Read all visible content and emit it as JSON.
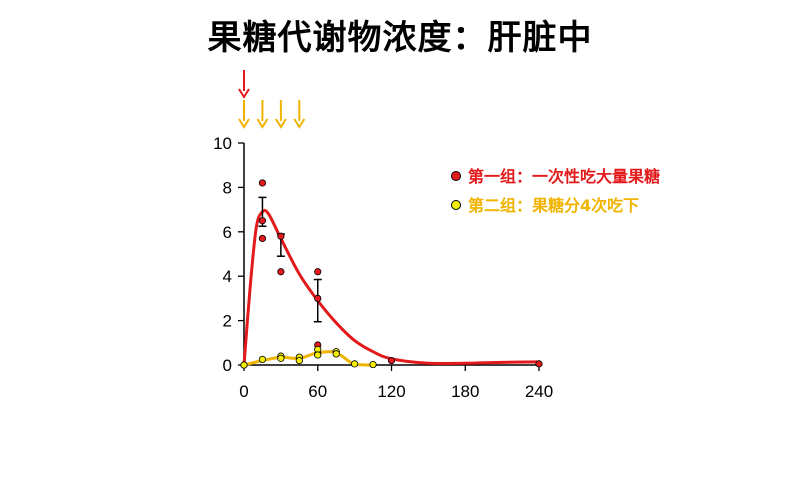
{
  "page_title": "果糖代谢物浓度：肝脏中",
  "colors": {
    "group1": "#e31a1c",
    "group2": "#f0b400",
    "group2_marker": "#f4f000",
    "axis": "#000000"
  },
  "chart_data": {
    "type": "line",
    "title": "果糖代谢物浓度：肝脏中",
    "xlabel": "",
    "ylabel": "",
    "xlim": [
      0,
      240
    ],
    "ylim": [
      0,
      10
    ],
    "x_ticks": [
      0,
      60,
      120,
      180,
      240
    ],
    "y_ticks": [
      0,
      2,
      4,
      6,
      8,
      10
    ],
    "legend_position": "top-right",
    "dose_arrows": {
      "group1": [
        0
      ],
      "group2": [
        0,
        15,
        30,
        45
      ]
    },
    "series": [
      {
        "name": "第一组：一次性吃大量果糖",
        "color": "#e31a1c",
        "curve": [
          [
            0,
            0
          ],
          [
            5,
            3.5
          ],
          [
            10,
            6.2
          ],
          [
            15,
            6.9
          ],
          [
            20,
            6.8
          ],
          [
            30,
            5.7
          ],
          [
            45,
            4.1
          ],
          [
            60,
            2.9
          ],
          [
            75,
            1.9
          ],
          [
            90,
            1.1
          ],
          [
            105,
            0.6
          ],
          [
            120,
            0.28
          ],
          [
            150,
            0.08
          ],
          [
            180,
            0.08
          ],
          [
            210,
            0.12
          ],
          [
            240,
            0.14
          ]
        ],
        "means": [
          [
            15,
            6.9
          ],
          [
            30,
            5.4
          ],
          [
            60,
            2.9
          ]
        ],
        "errors": [
          0.65,
          0.5,
          0.95
        ],
        "points": [
          [
            0,
            0
          ],
          [
            15,
            8.2
          ],
          [
            15,
            5.7
          ],
          [
            15,
            6.5
          ],
          [
            30,
            5.8
          ],
          [
            30,
            4.2
          ],
          [
            60,
            4.2
          ],
          [
            60,
            3.0
          ],
          [
            60,
            0.9
          ],
          [
            60,
            0.5
          ],
          [
            120,
            0.2
          ],
          [
            240,
            0.05
          ]
        ]
      },
      {
        "name": "第二组：果糖分4次吃下",
        "color": "#f0b400",
        "curve": [
          [
            0,
            0
          ],
          [
            15,
            0.2
          ],
          [
            30,
            0.35
          ],
          [
            45,
            0.3
          ],
          [
            60,
            0.55
          ],
          [
            75,
            0.55
          ],
          [
            90,
            0.02
          ],
          [
            105,
            0
          ]
        ],
        "points": [
          [
            0,
            0
          ],
          [
            15,
            0.25
          ],
          [
            30,
            0.4
          ],
          [
            30,
            0.3
          ],
          [
            45,
            0.35
          ],
          [
            45,
            0.2
          ],
          [
            60,
            0.7
          ],
          [
            60,
            0.45
          ],
          [
            75,
            0.6
          ],
          [
            75,
            0.5
          ],
          [
            90,
            0.05
          ],
          [
            105,
            0.02
          ]
        ]
      }
    ]
  }
}
